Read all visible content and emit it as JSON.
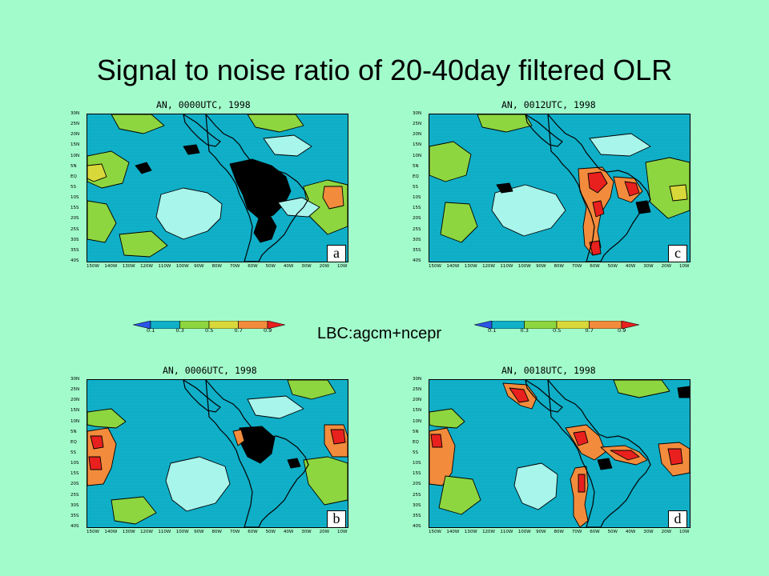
{
  "slide": {
    "title": "Signal to noise ratio of 20-40day filtered OLR",
    "lbc_label": "LBC:agcm+ncepr"
  },
  "colors": {
    "background": "#a2fbcb",
    "ocean": "#10b0c9",
    "low_blue": "#2a55e6",
    "light_cyan": "#a8f5ec",
    "green": "#8ed63f",
    "yellow": "#d8d83a",
    "orange": "#f28c3c",
    "red": "#e8201e",
    "white": "#ffffff"
  },
  "map_axes": {
    "lat_labels": [
      "30N",
      "25N",
      "20N",
      "15N",
      "10N",
      "5N",
      "EQ",
      "5S",
      "10S",
      "15S",
      "20S",
      "25S",
      "30S",
      "35S",
      "40S"
    ],
    "lon_labels": [
      "150W",
      "140W",
      "130W",
      "120W",
      "110W",
      "100W",
      "90W",
      "80W",
      "70W",
      "60W",
      "50W",
      "40W",
      "30W",
      "20W",
      "10W"
    ]
  },
  "colorbar": {
    "ticks": [
      "0.1",
      "0.3",
      "0.5",
      "0.7",
      "0.9"
    ],
    "colors": [
      "#2a55e6",
      "#10b0c9",
      "#8ed63f",
      "#d8d83a",
      "#f28c3c",
      "#e8201e"
    ]
  },
  "panels": [
    {
      "id": "a",
      "title": "AN, 0000UTC, 1998",
      "letter": "a"
    },
    {
      "id": "c",
      "title": "AN, 0012UTC, 1998",
      "letter": "c"
    },
    {
      "id": "b",
      "title": "AN, 0006UTC, 1998",
      "letter": "b"
    },
    {
      "id": "d",
      "title": "AN, 0018UTC, 1998",
      "letter": "d"
    }
  ]
}
